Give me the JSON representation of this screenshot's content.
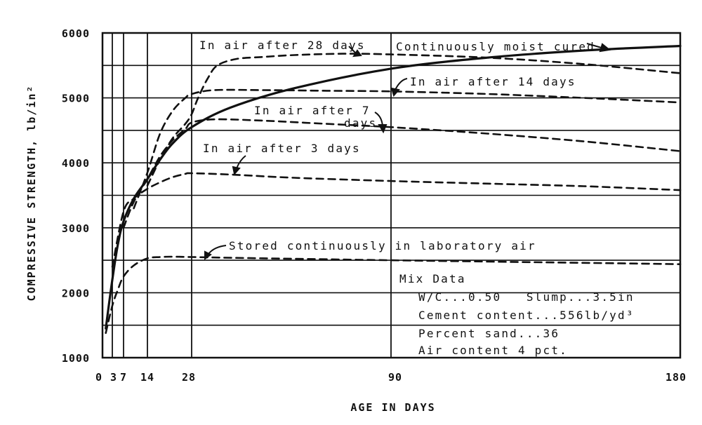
{
  "chart_data": {
    "type": "line",
    "title": "",
    "xlabel": "AGE IN DAYS",
    "ylabel": "COMPRESSIVE STRENGTH, lb/in²",
    "xlim": [
      0,
      180
    ],
    "ylim": [
      1000,
      6000
    ],
    "x_ticks": [
      0,
      3,
      7,
      14,
      28,
      90,
      180
    ],
    "x_tick_labels": [
      "0",
      "3",
      "7",
      "14",
      "28",
      "90",
      "180"
    ],
    "y_ticks": [
      1000,
      2000,
      3000,
      4000,
      5000,
      6000
    ],
    "y_tick_labels": [
      "1000",
      "2000",
      "3000",
      "4000",
      "5000",
      "6000"
    ],
    "grid": true,
    "series": [
      {
        "name": "Continuously moist cured",
        "style": "solid",
        "x": [
          1,
          3,
          5,
          7,
          10,
          14,
          18,
          22,
          28,
          40,
          60,
          90,
          120,
          150,
          180
        ],
        "y": [
          1450,
          2200,
          2750,
          3100,
          3450,
          3750,
          4050,
          4300,
          4550,
          4850,
          5150,
          5450,
          5620,
          5730,
          5800
        ]
      },
      {
        "name": "In air after 28 days",
        "style": "dashed",
        "x": [
          14,
          18,
          22,
          26,
          28,
          30,
          33,
          36,
          42,
          50,
          60,
          75,
          90,
          120,
          150,
          180
        ],
        "y": [
          3650,
          4050,
          4380,
          4600,
          4750,
          5000,
          5300,
          5500,
          5600,
          5630,
          5660,
          5680,
          5670,
          5620,
          5520,
          5380
        ]
      },
      {
        "name": "In air after 14 days",
        "style": "dashed",
        "x": [
          10,
          14,
          18,
          22,
          26,
          28,
          35,
          50,
          70,
          90,
          120,
          150,
          180
        ],
        "y": [
          3300,
          3850,
          4450,
          4800,
          5000,
          5060,
          5120,
          5120,
          5110,
          5100,
          5060,
          5000,
          4930
        ]
      },
      {
        "name": "In air after 7 days",
        "style": "dashed",
        "x": [
          7,
          10,
          14,
          18,
          22,
          26,
          28,
          35,
          50,
          70,
          90,
          120,
          150,
          180
        ],
        "y": [
          3000,
          3400,
          3750,
          4100,
          4350,
          4520,
          4620,
          4670,
          4650,
          4600,
          4550,
          4450,
          4330,
          4180
        ]
      },
      {
        "name": "In air after 3 days",
        "style": "dashed",
        "x": [
          3,
          7,
          10,
          14,
          18,
          22,
          26,
          28,
          40,
          60,
          90,
          120,
          150,
          180
        ],
        "y": [
          2400,
          3250,
          3450,
          3600,
          3700,
          3780,
          3830,
          3840,
          3820,
          3770,
          3720,
          3680,
          3640,
          3580
        ]
      },
      {
        "name": "Stored continuously in laboratory air",
        "style": "dashed",
        "x": [
          1,
          3,
          5,
          7,
          10,
          14,
          18,
          22,
          28,
          50,
          90,
          120,
          150,
          180
        ],
        "y": [
          1380,
          1800,
          2050,
          2250,
          2420,
          2530,
          2550,
          2555,
          2550,
          2530,
          2500,
          2480,
          2460,
          2440
        ]
      }
    ],
    "annotations": [
      "In air after 28 days",
      "Continuously moist cured",
      "In air after 14 days",
      "In air after 7",
      "days",
      "In air after 3 days",
      "Stored continuously in laboratory air"
    ],
    "mix_data": {
      "title": "Mix Data",
      "lines": [
        "W/C...0.50   Slump...3.5in",
        "Cement content...556lb/yd³",
        "Percent sand...36",
        "Air content 4 pct."
      ]
    }
  }
}
